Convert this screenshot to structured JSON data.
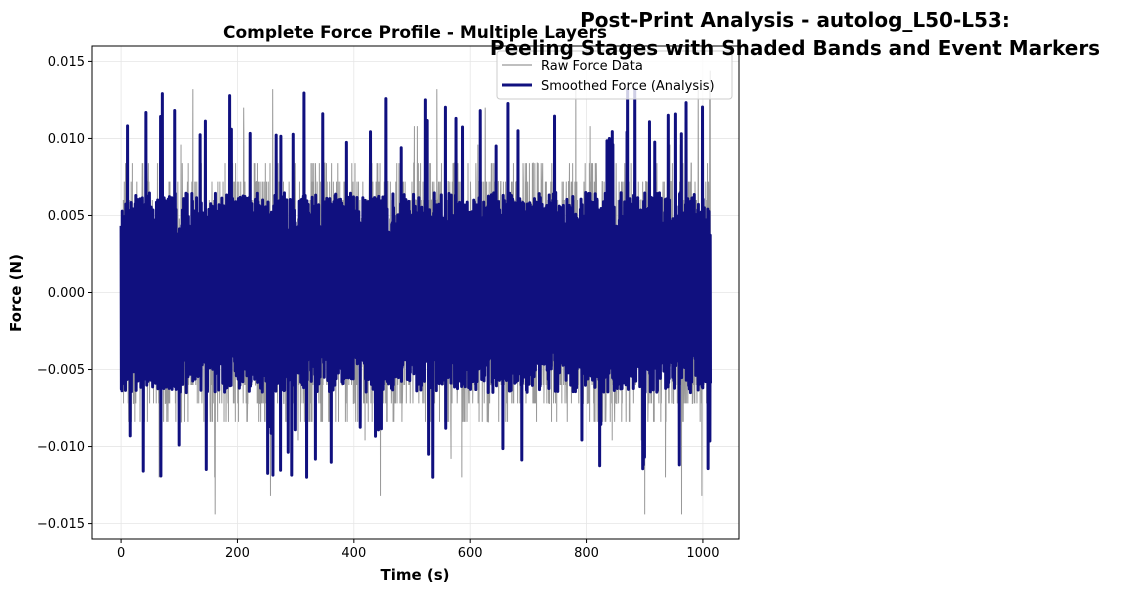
{
  "figure": {
    "suptitle_line1": "Post-Print Analysis - autolog_L50-L53:",
    "suptitle_line2": "Peeling Stages with Shaded Bands and Event Markers"
  },
  "chart_data": {
    "type": "line",
    "title": "Complete Force Profile - Multiple Layers",
    "xlabel": "Time (s)",
    "ylabel": "Force (N)",
    "xlim": [
      -50,
      1062
    ],
    "ylim": [
      -0.016,
      0.016
    ],
    "xticks": [
      0,
      200,
      400,
      600,
      800,
      1000
    ],
    "xtick_labels": [
      "0",
      "200",
      "400",
      "600",
      "800",
      "1000"
    ],
    "yticks": [
      -0.015,
      -0.01,
      -0.005,
      0.0,
      0.005,
      0.01,
      0.015
    ],
    "ytick_labels": [
      "−0.015",
      "−0.010",
      "−0.005",
      "0.000",
      "0.005",
      "0.010",
      "0.015"
    ],
    "grid": true,
    "legend_position": "top-right",
    "x_range_data": [
      0,
      1013
    ],
    "series": [
      {
        "name": "Raw Force Data",
        "color": "#999999",
        "typical_range": [
          -0.0085,
          0.0085
        ],
        "peak_max": 0.0145,
        "peak_min": -0.0145
      },
      {
        "name": "Smoothed Force (Analysis)",
        "color": "#10107f",
        "typical_range": [
          -0.0065,
          0.0065
        ],
        "peak_max": 0.0133,
        "peak_min": -0.0121
      }
    ]
  }
}
